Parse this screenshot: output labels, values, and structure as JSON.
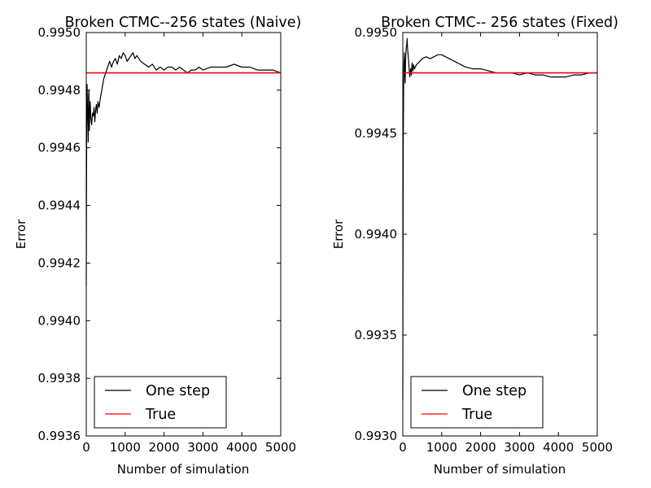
{
  "chart_data": [
    {
      "type": "line",
      "title": "Broken CTMC--256 states (Naive)",
      "xlabel": "Number of simulation",
      "ylabel": "Error",
      "xlim": [
        0,
        5000
      ],
      "ylim": [
        0.9936,
        0.995
      ],
      "xticks": [
        0,
        1000,
        2000,
        3000,
        4000,
        5000
      ],
      "xtick_labels": [
        "0",
        "1000",
        "2000",
        "3000",
        "4000",
        "5000"
      ],
      "yticks": [
        0.9936,
        0.9938,
        0.994,
        0.9942,
        0.9944,
        0.9946,
        0.9948,
        0.995
      ],
      "ytick_labels": [
        "0.9936",
        "0.9938",
        "0.9940",
        "0.9942",
        "0.9944",
        "0.9946",
        "0.9948",
        "0.9950"
      ],
      "grid": false,
      "legend": "lower-left",
      "series": [
        {
          "name": "One step",
          "color": "#000000",
          "x": [
            1,
            10,
            20,
            30,
            40,
            50,
            60,
            70,
            80,
            90,
            100,
            120,
            140,
            160,
            180,
            200,
            220,
            240,
            260,
            280,
            300,
            330,
            360,
            400,
            450,
            500,
            550,
            600,
            650,
            700,
            750,
            800,
            850,
            900,
            950,
            1000,
            1050,
            1100,
            1150,
            1200,
            1250,
            1300,
            1400,
            1500,
            1600,
            1700,
            1800,
            1900,
            2000,
            2100,
            2200,
            2300,
            2400,
            2500,
            2600,
            2700,
            2800,
            2900,
            3000,
            3200,
            3400,
            3600,
            3800,
            4000,
            4200,
            4400,
            4600,
            4800,
            5000
          ],
          "y": [
            0.99412,
            0.99465,
            0.99482,
            0.99475,
            0.9947,
            0.99462,
            0.99478,
            0.9948,
            0.99466,
            0.99472,
            0.99476,
            0.9947,
            0.99468,
            0.99472,
            0.99471,
            0.99474,
            0.99469,
            0.99473,
            0.99475,
            0.99472,
            0.99476,
            0.99474,
            0.99477,
            0.9948,
            0.99484,
            0.99486,
            0.99488,
            0.9949,
            0.99488,
            0.9949,
            0.99491,
            0.99489,
            0.99492,
            0.99491,
            0.99493,
            0.99492,
            0.9949,
            0.99491,
            0.99492,
            0.99493,
            0.99491,
            0.99492,
            0.9949,
            0.99489,
            0.99488,
            0.99489,
            0.99487,
            0.99488,
            0.99487,
            0.99488,
            0.99488,
            0.99487,
            0.99488,
            0.99487,
            0.99486,
            0.99487,
            0.99487,
            0.99488,
            0.99487,
            0.99488,
            0.99488,
            0.99488,
            0.99489,
            0.99488,
            0.99488,
            0.99487,
            0.99487,
            0.99487,
            0.99486
          ]
        },
        {
          "name": "True",
          "color": "#ff0000",
          "x": [
            0,
            5000
          ],
          "y": [
            0.99486,
            0.99486
          ]
        }
      ]
    },
    {
      "type": "line",
      "title": "Broken CTMC-- 256 states (Fixed)",
      "xlabel": "Number of simulation",
      "ylabel": "Error",
      "xlim": [
        0,
        5000
      ],
      "ylim": [
        0.993,
        0.995
      ],
      "xticks": [
        0,
        1000,
        2000,
        3000,
        4000,
        5000
      ],
      "xtick_labels": [
        "0",
        "1000",
        "2000",
        "3000",
        "4000",
        "5000"
      ],
      "yticks": [
        0.993,
        0.9935,
        0.994,
        0.9945,
        0.995
      ],
      "ytick_labels": [
        "0.9930",
        "0.9935",
        "0.9940",
        "0.9945",
        "0.9950"
      ],
      "grid": false,
      "legend": "lower-left",
      "series": [
        {
          "name": "One step",
          "color": "#000000",
          "x": [
            1,
            10,
            20,
            30,
            40,
            50,
            60,
            70,
            80,
            90,
            100,
            110,
            120,
            140,
            160,
            180,
            200,
            220,
            240,
            260,
            280,
            300,
            350,
            400,
            450,
            500,
            600,
            700,
            800,
            900,
            1000,
            1100,
            1200,
            1300,
            1400,
            1500,
            1600,
            1800,
            2000,
            2200,
            2400,
            2600,
            2800,
            3000,
            3200,
            3400,
            3600,
            3800,
            4000,
            4200,
            4400,
            4600,
            4800,
            5000
          ],
          "y": [
            0.99318,
            0.99442,
            0.99472,
            0.99485,
            0.9949,
            0.9948,
            0.99475,
            0.99485,
            0.9949,
            0.99493,
            0.99494,
            0.99497,
            0.99493,
            0.99488,
            0.99483,
            0.99478,
            0.99482,
            0.99479,
            0.99485,
            0.99481,
            0.99484,
            0.99482,
            0.99484,
            0.99485,
            0.99486,
            0.99487,
            0.99488,
            0.99487,
            0.99488,
            0.99489,
            0.99489,
            0.99488,
            0.99487,
            0.99486,
            0.99485,
            0.99484,
            0.99483,
            0.99482,
            0.99482,
            0.99481,
            0.9948,
            0.9948,
            0.9948,
            0.99479,
            0.9948,
            0.99479,
            0.99479,
            0.99478,
            0.99478,
            0.99478,
            0.99479,
            0.99479,
            0.9948,
            0.9948
          ]
        },
        {
          "name": "True",
          "color": "#ff0000",
          "x": [
            0,
            5000
          ],
          "y": [
            0.9948,
            0.9948
          ]
        }
      ]
    }
  ]
}
